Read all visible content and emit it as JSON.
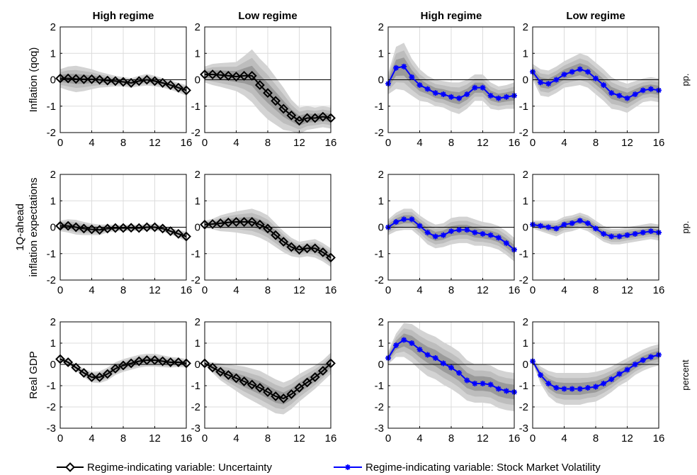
{
  "col_titles": [
    "High regime",
    "Low regime",
    "High regime",
    "Low regime"
  ],
  "row_labels": [
    [
      "Inflation (qoq)"
    ],
    [
      "1Q-ahead",
      "inflation expectations"
    ],
    [
      "Real GDP"
    ]
  ],
  "units": [
    "pp.",
    "pp.",
    "percent"
  ],
  "legend": {
    "uncertainty": "Regime-indicating variable: Uncertainty",
    "smv": "Regime-indicating variable: Stock Market Volatility"
  },
  "colors": {
    "uncertainty": "#000000",
    "smv": "#0000ff",
    "band_outer": "#d3d3d3",
    "band_mid": "#bdbdbd",
    "band_inner": "#9a9a9a",
    "grid": "#dcdcdc"
  },
  "chart_data": [
    {
      "type": "line",
      "row": 0,
      "col": 0,
      "marker": "diamond",
      "series": "uncertainty",
      "title": "High regime",
      "ylabel": "Inflation (qoq)",
      "xlim": [
        0,
        16
      ],
      "ylim": [
        -2,
        2
      ],
      "xticks": [
        0,
        4,
        8,
        12,
        16
      ],
      "yticks": [
        -2,
        -1,
        0,
        1,
        2
      ],
      "x": [
        0,
        1,
        2,
        3,
        4,
        5,
        6,
        7,
        8,
        9,
        10,
        11,
        12,
        13,
        14,
        15,
        16
      ],
      "y": [
        0.05,
        0.05,
        0.03,
        0.02,
        0.02,
        0.0,
        -0.03,
        -0.05,
        -0.08,
        -0.12,
        -0.05,
        0.0,
        -0.05,
        -0.12,
        -0.2,
        -0.3,
        -0.4
      ],
      "band": [
        0.35,
        0.45,
        0.5,
        0.45,
        0.38,
        0.3,
        0.25,
        0.2,
        0.18,
        0.18,
        0.2,
        0.22,
        0.2,
        0.18,
        0.18,
        0.18,
        0.2
      ]
    },
    {
      "type": "line",
      "row": 0,
      "col": 1,
      "marker": "diamond",
      "series": "uncertainty",
      "title": "Low regime",
      "xlim": [
        0,
        16
      ],
      "ylim": [
        -2,
        2
      ],
      "xticks": [
        0,
        4,
        8,
        12,
        16
      ],
      "yticks": [
        -2,
        -1,
        0,
        1,
        2
      ],
      "x": [
        0,
        1,
        2,
        3,
        4,
        5,
        6,
        7,
        8,
        9,
        10,
        11,
        12,
        13,
        14,
        15,
        16
      ],
      "y": [
        0.2,
        0.2,
        0.18,
        0.15,
        0.12,
        0.15,
        0.15,
        -0.2,
        -0.5,
        -0.8,
        -1.1,
        -1.35,
        -1.55,
        -1.45,
        -1.45,
        -1.4,
        -1.45
      ],
      "band": [
        0.3,
        0.4,
        0.45,
        0.5,
        0.55,
        0.75,
        1.0,
        1.0,
        1.0,
        0.9,
        0.8,
        0.6,
        0.5,
        0.45,
        0.4,
        0.4,
        0.4
      ]
    },
    {
      "type": "line",
      "row": 0,
      "col": 2,
      "marker": "star",
      "series": "smv",
      "title": "High regime",
      "xlim": [
        0,
        16
      ],
      "ylim": [
        -2,
        2
      ],
      "xticks": [
        0,
        4,
        8,
        12,
        16
      ],
      "yticks": [
        -2,
        -1,
        0,
        1,
        2
      ],
      "x": [
        0,
        1,
        2,
        3,
        4,
        5,
        6,
        7,
        8,
        9,
        10,
        11,
        12,
        13,
        14,
        15,
        16
      ],
      "y": [
        -0.15,
        0.45,
        0.5,
        0.1,
        -0.2,
        -0.35,
        -0.5,
        -0.55,
        -0.65,
        -0.7,
        -0.55,
        -0.3,
        -0.3,
        -0.6,
        -0.7,
        -0.65,
        -0.6
      ],
      "band": [
        0.4,
        0.8,
        0.9,
        0.7,
        0.6,
        0.5,
        0.5,
        0.5,
        0.55,
        0.6,
        0.55,
        0.5,
        0.5,
        0.5,
        0.45,
        0.45,
        0.5
      ]
    },
    {
      "type": "line",
      "row": 0,
      "col": 3,
      "marker": "star",
      "series": "smv",
      "title": "Low regime",
      "xlim": [
        0,
        16
      ],
      "ylim": [
        -2,
        2
      ],
      "xticks": [
        0,
        4,
        8,
        12,
        16
      ],
      "yticks": [
        -2,
        -1,
        0,
        1,
        2
      ],
      "x": [
        0,
        1,
        2,
        3,
        4,
        5,
        6,
        7,
        8,
        9,
        10,
        11,
        12,
        13,
        14,
        15,
        16
      ],
      "y": [
        0.3,
        -0.1,
        -0.15,
        0.0,
        0.2,
        0.3,
        0.4,
        0.3,
        0.05,
        -0.2,
        -0.5,
        -0.6,
        -0.7,
        -0.55,
        -0.4,
        -0.35,
        -0.4
      ],
      "band": [
        0.3,
        0.5,
        0.5,
        0.5,
        0.5,
        0.55,
        0.6,
        0.6,
        0.6,
        0.6,
        0.6,
        0.55,
        0.55,
        0.5,
        0.45,
        0.45,
        0.45
      ]
    },
    {
      "type": "line",
      "row": 1,
      "col": 0,
      "marker": "diamond",
      "series": "uncertainty",
      "ylabel": "1Q-ahead inflation expectations",
      "xlim": [
        0,
        16
      ],
      "ylim": [
        -2,
        2
      ],
      "xticks": [
        0,
        4,
        8,
        12,
        16
      ],
      "yticks": [
        -2,
        -1,
        0,
        1,
        2
      ],
      "x": [
        0,
        1,
        2,
        3,
        4,
        5,
        6,
        7,
        8,
        9,
        10,
        11,
        12,
        13,
        14,
        15,
        16
      ],
      "y": [
        0.05,
        0.05,
        0.0,
        -0.05,
        -0.08,
        -0.1,
        -0.05,
        -0.03,
        -0.03,
        -0.02,
        -0.03,
        0.0,
        0.0,
        -0.05,
        -0.15,
        -0.25,
        -0.35
      ],
      "band": [
        0.2,
        0.25,
        0.28,
        0.25,
        0.22,
        0.2,
        0.15,
        0.12,
        0.12,
        0.12,
        0.12,
        0.12,
        0.12,
        0.12,
        0.12,
        0.15,
        0.18
      ]
    },
    {
      "type": "line",
      "row": 1,
      "col": 1,
      "marker": "diamond",
      "series": "uncertainty",
      "xlim": [
        0,
        16
      ],
      "ylim": [
        -2,
        2
      ],
      "xticks": [
        0,
        4,
        8,
        12,
        16
      ],
      "yticks": [
        -2,
        -1,
        0,
        1,
        2
      ],
      "x": [
        0,
        1,
        2,
        3,
        4,
        5,
        6,
        7,
        8,
        9,
        10,
        11,
        12,
        13,
        14,
        15,
        16
      ],
      "y": [
        0.1,
        0.12,
        0.15,
        0.18,
        0.2,
        0.2,
        0.2,
        0.1,
        -0.05,
        -0.3,
        -0.55,
        -0.75,
        -0.85,
        -0.8,
        -0.8,
        -0.95,
        -1.15
      ],
      "band": [
        0.15,
        0.2,
        0.3,
        0.35,
        0.4,
        0.45,
        0.5,
        0.5,
        0.5,
        0.45,
        0.4,
        0.35,
        0.3,
        0.3,
        0.35,
        0.35,
        0.35
      ]
    },
    {
      "type": "line",
      "row": 1,
      "col": 2,
      "marker": "star",
      "series": "smv",
      "xlim": [
        0,
        16
      ],
      "ylim": [
        -2,
        2
      ],
      "xticks": [
        0,
        4,
        8,
        12,
        16
      ],
      "yticks": [
        -2,
        -1,
        0,
        1,
        2
      ],
      "x": [
        0,
        1,
        2,
        3,
        4,
        5,
        6,
        7,
        8,
        9,
        10,
        11,
        12,
        13,
        14,
        15,
        16
      ],
      "y": [
        0.0,
        0.2,
        0.3,
        0.3,
        0.05,
        -0.2,
        -0.35,
        -0.3,
        -0.15,
        -0.1,
        -0.1,
        -0.2,
        -0.25,
        -0.3,
        -0.4,
        -0.6,
        -0.85
      ],
      "band": [
        0.3,
        0.35,
        0.4,
        0.4,
        0.4,
        0.45,
        0.45,
        0.45,
        0.5,
        0.5,
        0.5,
        0.5,
        0.45,
        0.45,
        0.45,
        0.45,
        0.45
      ]
    },
    {
      "type": "line",
      "row": 1,
      "col": 3,
      "marker": "star",
      "series": "smv",
      "xlim": [
        0,
        16
      ],
      "ylim": [
        -2,
        2
      ],
      "xticks": [
        0,
        4,
        8,
        12,
        16
      ],
      "yticks": [
        -2,
        -1,
        0,
        1,
        2
      ],
      "x": [
        0,
        1,
        2,
        3,
        4,
        5,
        6,
        7,
        8,
        9,
        10,
        11,
        12,
        13,
        14,
        15,
        16
      ],
      "y": [
        0.1,
        0.05,
        0.0,
        -0.05,
        0.1,
        0.15,
        0.25,
        0.15,
        -0.05,
        -0.25,
        -0.35,
        -0.35,
        -0.3,
        -0.25,
        -0.2,
        -0.15,
        -0.2
      ],
      "band": [
        0.15,
        0.2,
        0.25,
        0.3,
        0.3,
        0.3,
        0.3,
        0.3,
        0.3,
        0.3,
        0.3,
        0.3,
        0.3,
        0.3,
        0.3,
        0.3,
        0.3
      ]
    },
    {
      "type": "line",
      "row": 2,
      "col": 0,
      "marker": "diamond",
      "series": "uncertainty",
      "ylabel": "Real GDP",
      "xlim": [
        0,
        16
      ],
      "ylim": [
        -3,
        2
      ],
      "xticks": [
        0,
        4,
        8,
        12,
        16
      ],
      "yticks": [
        -3,
        -2,
        -1,
        0,
        1,
        2
      ],
      "x": [
        0,
        1,
        2,
        3,
        4,
        5,
        6,
        7,
        8,
        9,
        10,
        11,
        12,
        13,
        14,
        15,
        16
      ],
      "y": [
        0.25,
        0.1,
        -0.15,
        -0.4,
        -0.6,
        -0.6,
        -0.45,
        -0.2,
        -0.05,
        0.05,
        0.15,
        0.2,
        0.2,
        0.15,
        0.1,
        0.1,
        0.05
      ],
      "band": [
        0.1,
        0.12,
        0.15,
        0.2,
        0.25,
        0.28,
        0.3,
        0.3,
        0.3,
        0.3,
        0.3,
        0.3,
        0.3,
        0.28,
        0.25,
        0.22,
        0.2
      ]
    },
    {
      "type": "line",
      "row": 2,
      "col": 1,
      "marker": "diamond",
      "series": "uncertainty",
      "xlim": [
        0,
        16
      ],
      "ylim": [
        -3,
        2
      ],
      "xticks": [
        0,
        4,
        8,
        12,
        16
      ],
      "yticks": [
        -3,
        -2,
        -1,
        0,
        1,
        2
      ],
      "x": [
        0,
        1,
        2,
        3,
        4,
        5,
        6,
        7,
        8,
        9,
        10,
        11,
        12,
        13,
        14,
        15,
        16
      ],
      "y": [
        0.05,
        -0.15,
        -0.35,
        -0.5,
        -0.65,
        -0.8,
        -0.95,
        -1.1,
        -1.3,
        -1.5,
        -1.6,
        -1.4,
        -1.1,
        -0.85,
        -0.6,
        -0.3,
        0.05
      ],
      "band": [
        0.1,
        0.25,
        0.4,
        0.5,
        0.6,
        0.7,
        0.75,
        0.8,
        0.8,
        0.8,
        0.75,
        0.7,
        0.65,
        0.6,
        0.55,
        0.5,
        0.5
      ]
    },
    {
      "type": "line",
      "row": 2,
      "col": 2,
      "marker": "star",
      "series": "smv",
      "xlim": [
        0,
        16
      ],
      "ylim": [
        -3,
        2
      ],
      "xticks": [
        0,
        4,
        8,
        12,
        16
      ],
      "yticks": [
        -3,
        -2,
        -1,
        0,
        1,
        2
      ],
      "x": [
        0,
        1,
        2,
        3,
        4,
        5,
        6,
        7,
        8,
        9,
        10,
        11,
        12,
        13,
        14,
        15,
        16
      ],
      "y": [
        0.3,
        0.9,
        1.15,
        1.0,
        0.7,
        0.45,
        0.3,
        0.05,
        -0.15,
        -0.4,
        -0.75,
        -0.9,
        -0.9,
        -0.95,
        -1.15,
        -1.25,
        -1.3
      ],
      "band": [
        0.3,
        0.55,
        0.8,
        0.9,
        0.95,
        1.0,
        1.0,
        1.0,
        1.0,
        1.0,
        0.95,
        0.9,
        0.9,
        0.9,
        0.9,
        0.9,
        0.9
      ]
    },
    {
      "type": "line",
      "row": 2,
      "col": 3,
      "marker": "star",
      "series": "smv",
      "xlim": [
        0,
        16
      ],
      "ylim": [
        -3,
        2
      ],
      "xticks": [
        0,
        4,
        8,
        12,
        16
      ],
      "yticks": [
        -3,
        -2,
        -1,
        0,
        1,
        2
      ],
      "x": [
        0,
        1,
        2,
        3,
        4,
        5,
        6,
        7,
        8,
        9,
        10,
        11,
        12,
        13,
        14,
        15,
        16
      ],
      "y": [
        0.15,
        -0.5,
        -0.9,
        -1.1,
        -1.15,
        -1.15,
        -1.15,
        -1.1,
        -1.05,
        -0.9,
        -0.7,
        -0.45,
        -0.25,
        0.0,
        0.2,
        0.35,
        0.45
      ],
      "band": [
        0.1,
        0.4,
        0.6,
        0.7,
        0.75,
        0.75,
        0.75,
        0.7,
        0.7,
        0.65,
        0.6,
        0.55,
        0.55,
        0.5,
        0.5,
        0.5,
        0.5
      ]
    }
  ]
}
